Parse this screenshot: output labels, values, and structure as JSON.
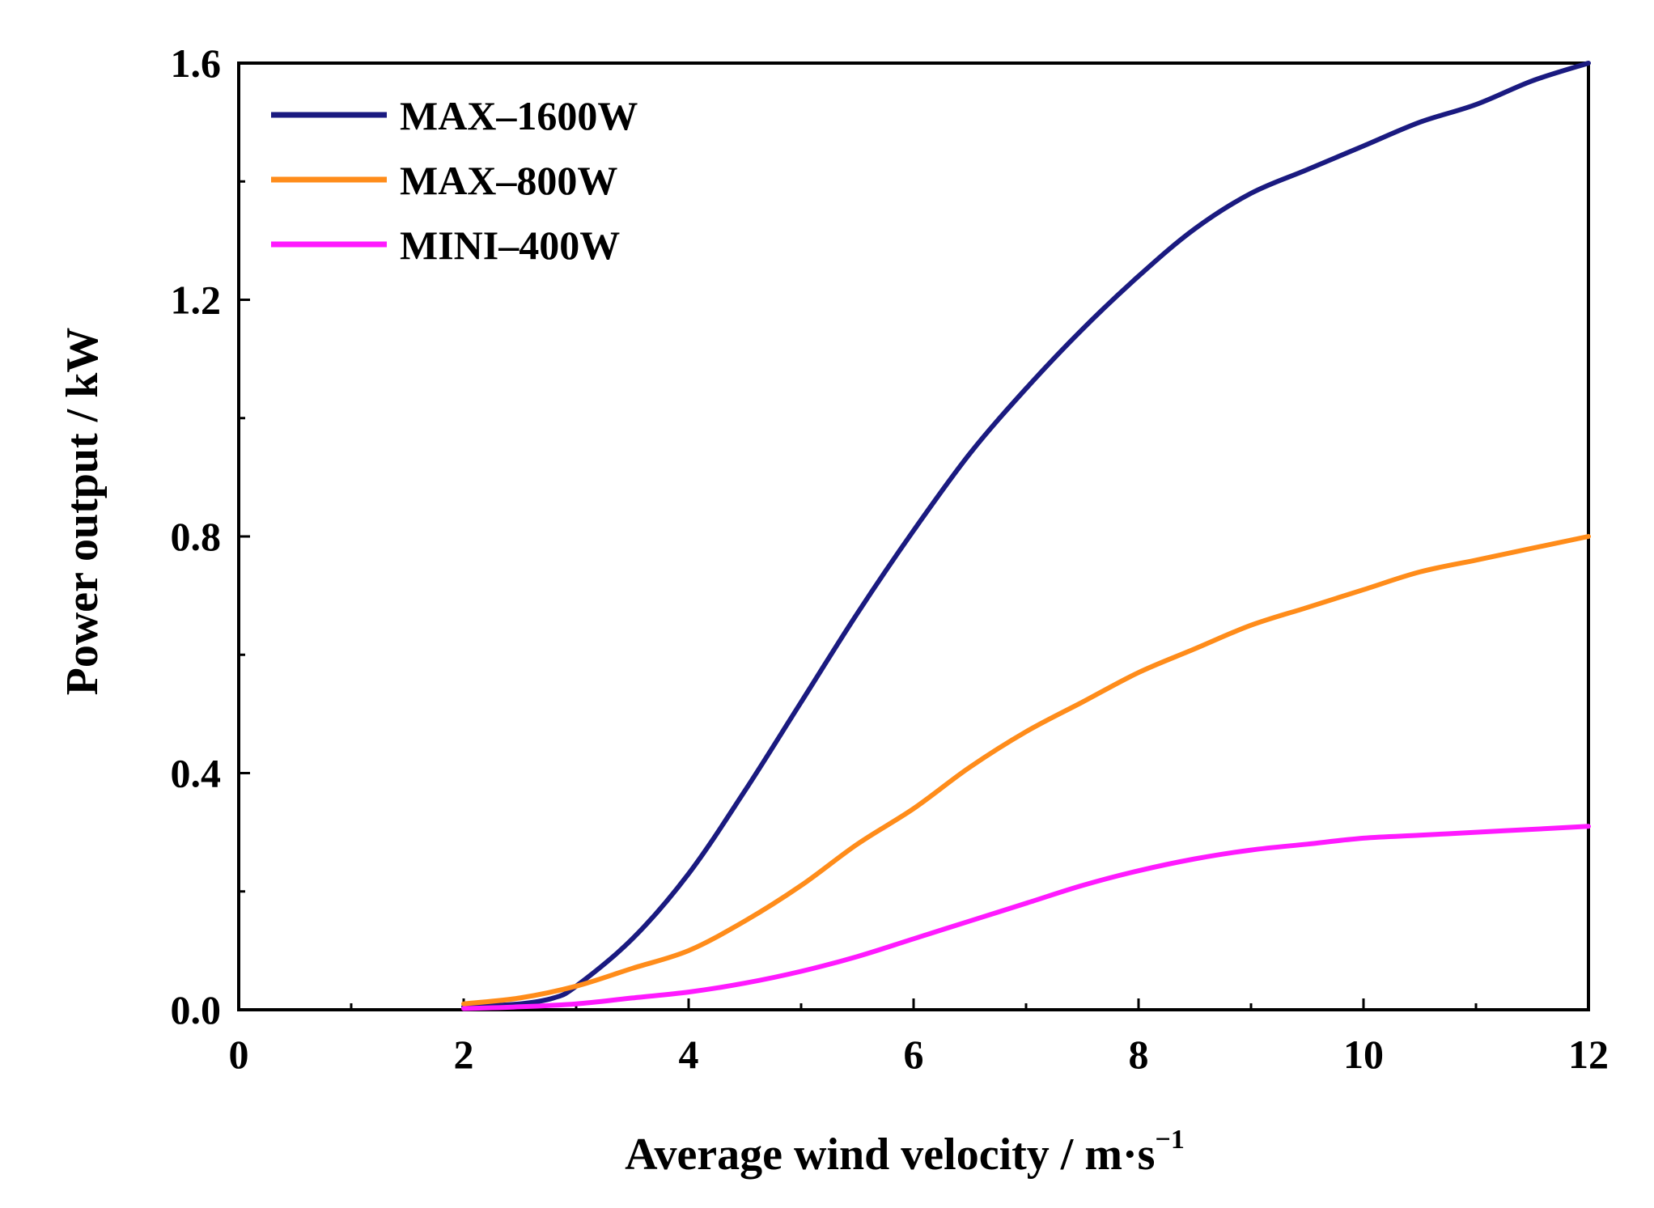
{
  "chart_data": {
    "type": "line",
    "xlabel": "Average wind velocity / m·s",
    "xlabel_sup": "−1",
    "ylabel": "Power output / kW",
    "xlim": [
      0,
      12
    ],
    "ylim": [
      0,
      1.6
    ],
    "x_ticks": [
      "0",
      "2",
      "4",
      "6",
      "8",
      "10",
      "12"
    ],
    "y_ticks": [
      "0.0",
      "0.4",
      "0.8",
      "1.2",
      "1.6"
    ],
    "grid": false,
    "legend_position": "top-left",
    "series": [
      {
        "name": "MAX–1600W",
        "color": "#1a1a80",
        "x": [
          2.0,
          2.5,
          2.8,
          3.0,
          3.5,
          4.0,
          4.5,
          5.0,
          5.5,
          6.0,
          6.5,
          7.0,
          7.5,
          8.0,
          8.5,
          9.0,
          9.5,
          10.0,
          10.5,
          11.0,
          11.5,
          12.0
        ],
        "y": [
          0.005,
          0.01,
          0.02,
          0.04,
          0.12,
          0.23,
          0.37,
          0.52,
          0.67,
          0.81,
          0.94,
          1.05,
          1.15,
          1.24,
          1.32,
          1.38,
          1.42,
          1.46,
          1.5,
          1.53,
          1.57,
          1.6
        ]
      },
      {
        "name": "MAX–800W",
        "color": "#ff8c1a",
        "x": [
          2.0,
          2.5,
          3.0,
          3.5,
          4.0,
          4.5,
          5.0,
          5.5,
          6.0,
          6.5,
          7.0,
          7.5,
          8.0,
          8.5,
          9.0,
          9.5,
          10.0,
          10.5,
          11.0,
          11.5,
          12.0
        ],
        "y": [
          0.01,
          0.02,
          0.04,
          0.07,
          0.1,
          0.15,
          0.21,
          0.28,
          0.34,
          0.41,
          0.47,
          0.52,
          0.57,
          0.61,
          0.65,
          0.68,
          0.71,
          0.74,
          0.76,
          0.78,
          0.8
        ]
      },
      {
        "name": "MINI–400W",
        "color": "#ff1aff",
        "x": [
          2.0,
          2.5,
          3.0,
          3.5,
          4.0,
          4.5,
          5.0,
          5.5,
          6.0,
          6.5,
          7.0,
          7.5,
          8.0,
          8.5,
          9.0,
          9.5,
          10.0,
          10.5,
          11.0,
          11.5,
          12.0
        ],
        "y": [
          0.002,
          0.005,
          0.01,
          0.02,
          0.03,
          0.045,
          0.065,
          0.09,
          0.12,
          0.15,
          0.18,
          0.21,
          0.235,
          0.255,
          0.27,
          0.28,
          0.29,
          0.295,
          0.3,
          0.305,
          0.31
        ]
      }
    ]
  }
}
